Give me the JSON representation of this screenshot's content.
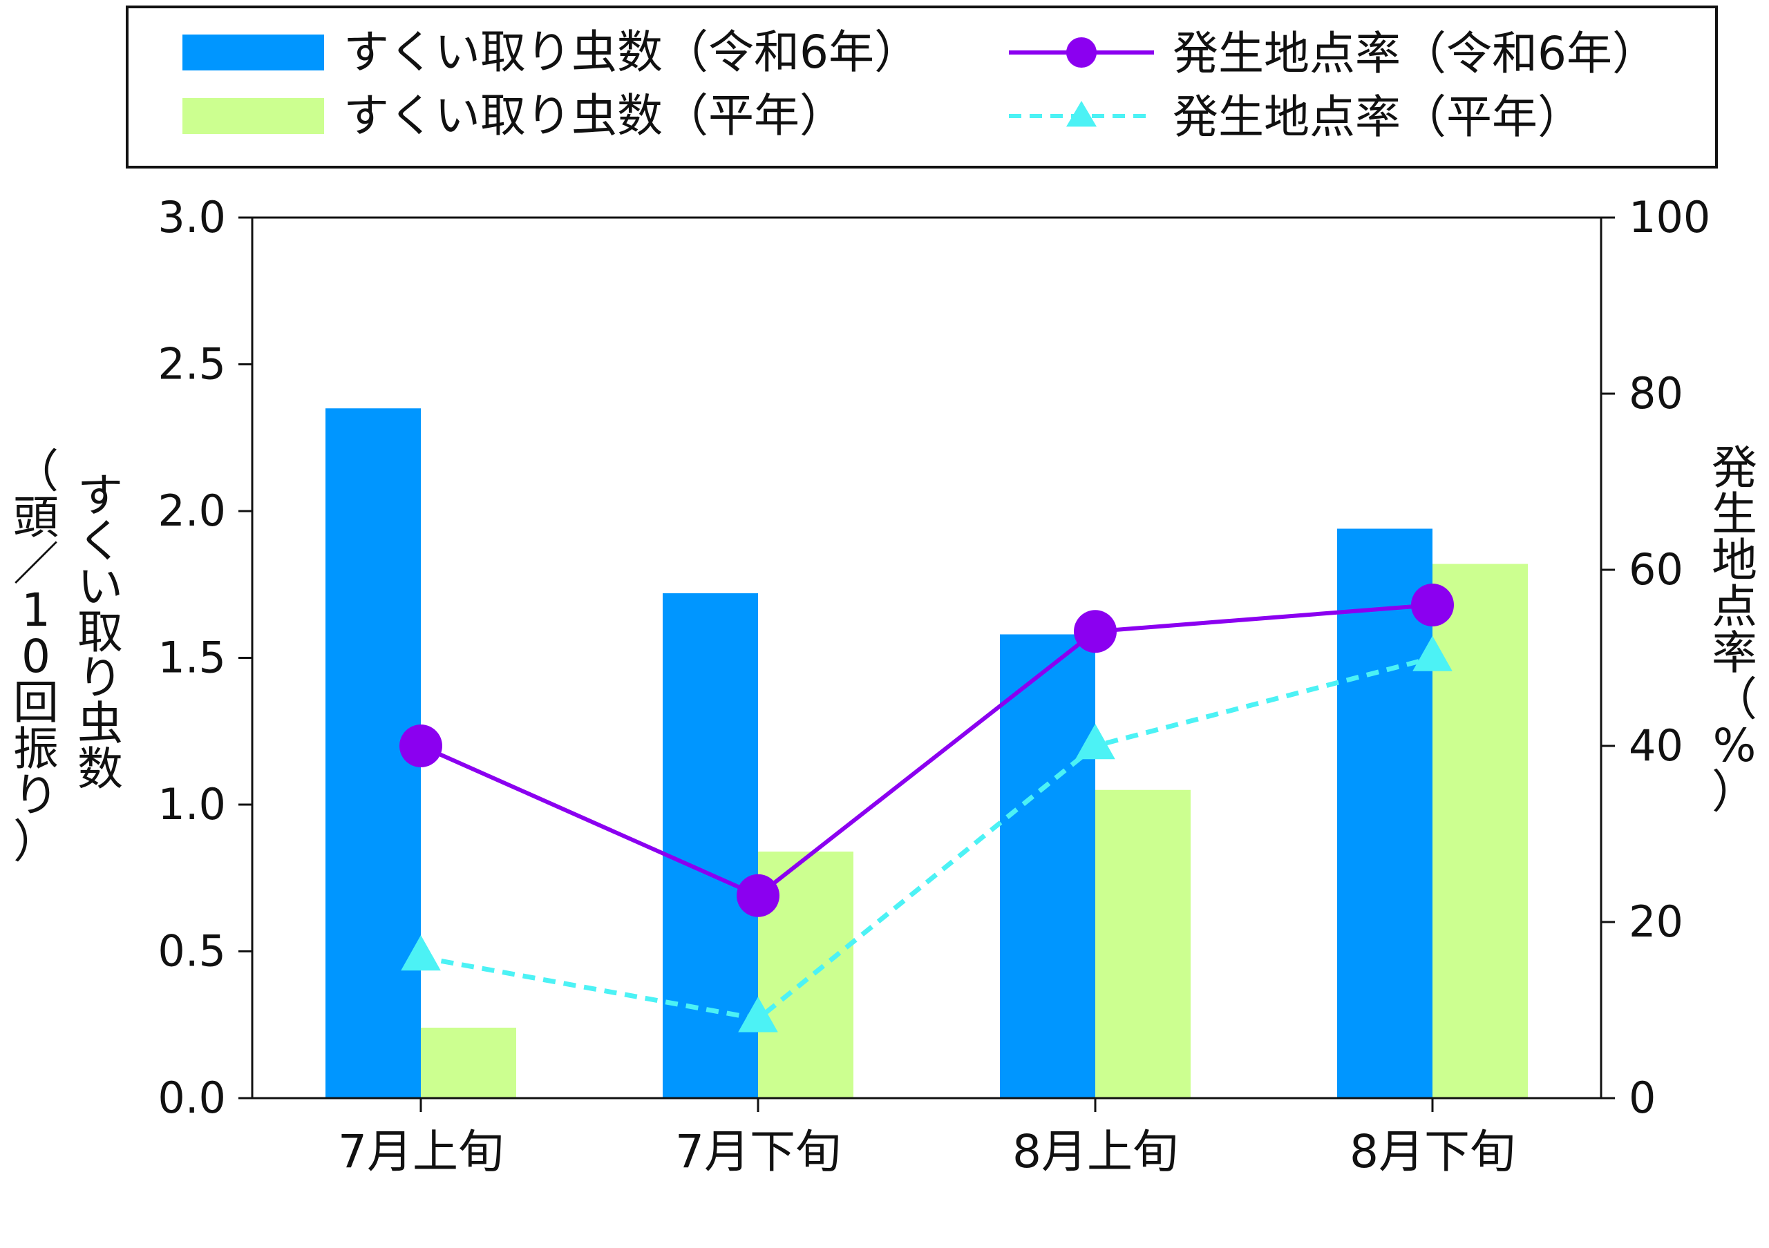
{
  "chart_data": {
    "type": "bar+line",
    "categories": [
      "7月上旬",
      "7月下旬",
      "8月上旬",
      "8月下旬"
    ],
    "bar_series": [
      {
        "name": "すくい取り虫数（令和6年）",
        "values": [
          2.35,
          1.72,
          1.58,
          1.94
        ],
        "color": "#0096ff"
      },
      {
        "name": "すくい取り虫数（平年）",
        "values": [
          0.24,
          0.84,
          1.05,
          1.82
        ],
        "color": "#ccff90"
      }
    ],
    "line_series": [
      {
        "name": "発生地点率（令和6年）",
        "values": [
          40,
          23,
          53,
          56
        ],
        "color": "#8b00f0",
        "marker": "circle",
        "dash": "solid"
      },
      {
        "name": "発生地点率（平年）",
        "values": [
          16,
          9,
          40,
          50
        ],
        "color": "#4cf2f5",
        "marker": "triangle",
        "dash": "dashed"
      }
    ],
    "y_left": {
      "label": "すくい取り虫数（頭／10回振り）",
      "label_main": "すくい取り虫数",
      "label_unit": "（頭／10回振り）",
      "ylim": [
        0,
        3.0
      ],
      "ticks": [
        "0.0",
        "0.5",
        "1.0",
        "1.5",
        "2.0",
        "2.5",
        "3.0"
      ]
    },
    "y_right": {
      "label": "発生地点率（%）",
      "ylim": [
        0,
        100
      ],
      "ticks": [
        "0",
        "20",
        "40",
        "60",
        "80",
        "100"
      ]
    },
    "legend": {
      "placement": "top"
    },
    "grid": false
  }
}
